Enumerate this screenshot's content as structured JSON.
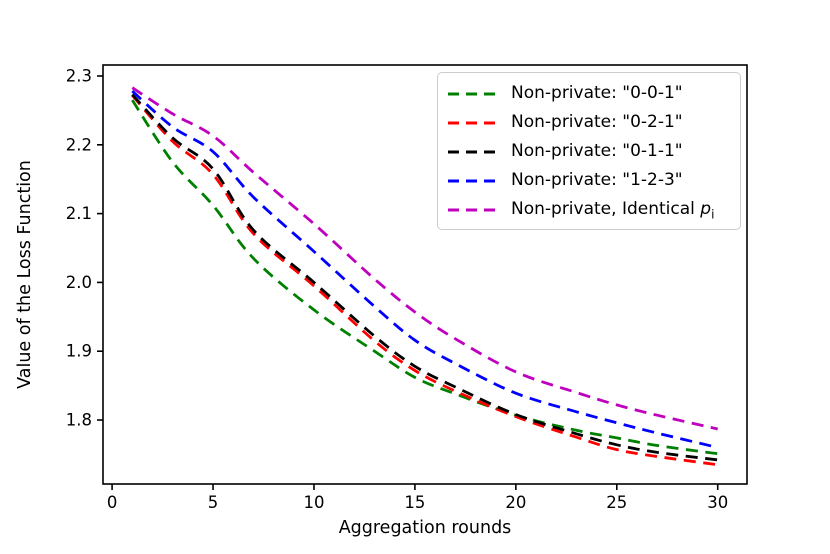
{
  "figure": {
    "background": "#ffffff"
  },
  "chart_data": {
    "type": "line",
    "title": "",
    "xlabel": "Aggregation rounds",
    "ylabel": "Value of the Loss Function",
    "xlim": [
      -0.45,
      31.45
    ],
    "ylim": [
      1.707,
      2.316
    ],
    "x_ticks": [
      0,
      5,
      10,
      15,
      20,
      25,
      30
    ],
    "y_ticks": [
      2.3,
      2.2,
      2.1,
      2.0,
      1.9,
      1.8
    ],
    "grid": false,
    "legend_position": "upper right",
    "line_style": "dashed",
    "x": [
      1,
      3,
      5,
      7,
      10,
      13,
      15,
      17,
      20,
      23,
      25,
      27,
      30
    ],
    "series": [
      {
        "label": "Non-private: \"0-0-1\"",
        "color": "#008000",
        "values": [
          2.265,
          2.175,
          2.112,
          2.035,
          1.96,
          1.9,
          1.862,
          1.838,
          1.807,
          1.785,
          1.774,
          1.763,
          1.751
        ]
      },
      {
        "label": "Non-private: \"0-2-1\"",
        "color": "#ff0000",
        "values": [
          2.272,
          2.205,
          2.157,
          2.071,
          1.995,
          1.915,
          1.872,
          1.842,
          1.805,
          1.775,
          1.757,
          1.747,
          1.735
        ]
      },
      {
        "label": "Non-private: \"0-1-1\"",
        "color": "#000000",
        "values": [
          2.273,
          2.21,
          2.165,
          2.076,
          2.0,
          1.922,
          1.878,
          1.848,
          1.808,
          1.78,
          1.764,
          1.753,
          1.742
        ]
      },
      {
        "label": "Non-private: \"1-2-3\"",
        "color": "#0000ff",
        "values": [
          2.278,
          2.226,
          2.19,
          2.124,
          2.045,
          1.965,
          1.916,
          1.882,
          1.839,
          1.812,
          1.796,
          1.781,
          1.76
        ]
      },
      {
        "label": "Non-private, Identical p_i",
        "label_parts": {
          "prefix": "Non-private, Identical ",
          "var": "p",
          "sub": "i"
        },
        "color": "#bf00bf",
        "values": [
          2.283,
          2.245,
          2.213,
          2.16,
          2.085,
          2.005,
          1.957,
          1.918,
          1.87,
          1.84,
          1.822,
          1.807,
          1.787
        ]
      }
    ]
  }
}
